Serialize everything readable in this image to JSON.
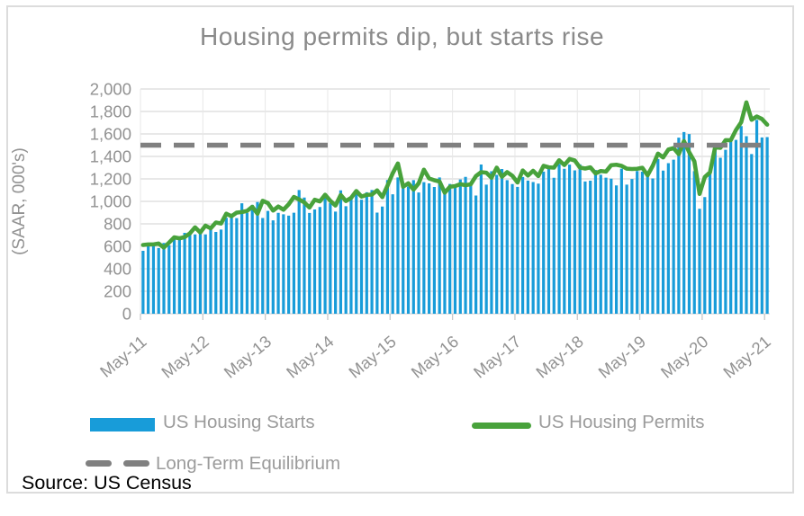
{
  "title": "Housing permits dip, but starts rise",
  "y_axis": {
    "title": "(SAAR, 000's)"
  },
  "legend": {
    "starts_label": "US Housing Starts",
    "permits_label": "US Housing Permits",
    "equilibrium_label": "Long-Term Equilibrium"
  },
  "source_note": "Source: US Census",
  "colors": {
    "starts": "#189cd9",
    "permits": "#48a23b",
    "equilibrium": "#808080",
    "grid": "#d9d9d9",
    "vgrid": "#e7e7e7",
    "axis_text": "#929292",
    "title_text": "#8a8a8a",
    "legend_text": "#9b9b9b",
    "source_text": "#000000"
  },
  "chart_data": {
    "type": "combo (bar + line)",
    "frequency": "monthly",
    "x_start": "May-2011",
    "x_end": "May-2021",
    "x_tick_labels": [
      "May-11",
      "May-12",
      "May-13",
      "May-14",
      "May-15",
      "May-16",
      "May-17",
      "May-18",
      "May-19",
      "May-20",
      "May-21"
    ],
    "ylim": [
      0,
      2000
    ],
    "y_tick_step": 200,
    "y_tick_labels": [
      "0",
      "200",
      "400",
      "600",
      "800",
      "1,000",
      "1,200",
      "1,400",
      "1,600",
      "1,800",
      "2,000"
    ],
    "grid": "horizontal + yearly vertical",
    "legend_position": "bottom",
    "series": [
      {
        "name": "US Housing Starts",
        "type": "bar",
        "values": [
          560,
          615,
          623,
          585,
          630,
          610,
          685,
          689,
          720,
          718,
          706,
          747,
          706,
          754,
          728,
          749,
          854,
          863,
          851,
          983,
          898,
          969,
          994,
          852,
          915,
          831,
          898,
          885,
          873,
          899,
          1101,
          1034,
          897,
          928,
          950,
          1063,
          984,
          909,
          1098,
          957,
          1028,
          1092,
          1015,
          1081,
          1101,
          900,
          954,
          1190,
          1063,
          1213,
          1147,
          1132,
          1189,
          1079,
          1171,
          1160,
          1128,
          1213,
          1113,
          1155,
          1128,
          1195,
          1218,
          1164,
          1052,
          1328,
          1149,
          1268,
          1236,
          1288,
          1189,
          1154,
          1129,
          1217,
          1185,
          1172,
          1158,
          1265,
          1303,
          1210,
          1334,
          1290,
          1327,
          1276,
          1329,
          1177,
          1184,
          1279,
          1237,
          1211,
          1202,
          1142,
          1291,
          1149,
          1199,
          1270,
          1264,
          1233,
          1204,
          1377,
          1274,
          1340,
          1371,
          1567,
          1617,
          1599,
          1269,
          934,
          1038,
          1265,
          1497,
          1388,
          1459,
          1530,
          1547,
          1670,
          1580,
          1421,
          1725,
          1569,
          1572
        ]
      },
      {
        "name": "US Housing Permits",
        "type": "line",
        "values": [
          612,
          617,
          617,
          625,
          589,
          633,
          680,
          671,
          682,
          715,
          769,
          723,
          784,
          760,
          812,
          803,
          890,
          868,
          900,
          905,
          915,
          952,
          890,
          1005,
          985,
          918,
          954,
          926,
          974,
          1039,
          1017,
          991,
          945,
          1014,
          1000,
          1059,
          1005,
          963,
          1057,
          1003,
          1031,
          1092,
          1043,
          1058,
          1060,
          1098,
          1038,
          1140,
          1250,
          1337,
          1130,
          1161,
          1105,
          1161,
          1282,
          1204,
          1188,
          1177,
          1077,
          1130,
          1136,
          1153,
          1144,
          1152,
          1225,
          1260,
          1255,
          1210,
          1300,
          1219,
          1260,
          1228,
          1168,
          1275,
          1230,
          1272,
          1225,
          1316,
          1303,
          1300,
          1366,
          1323,
          1377,
          1364,
          1301,
          1292,
          1303,
          1249,
          1270,
          1265,
          1322,
          1326,
          1316,
          1291,
          1288,
          1290,
          1299,
          1232,
          1317,
          1425,
          1391,
          1461,
          1474,
          1420,
          1536,
          1438,
          1356,
          1066,
          1216,
          1258,
          1483,
          1476,
          1545,
          1544,
          1635,
          1704,
          1881,
          1726,
          1755,
          1733,
          1683
        ]
      },
      {
        "name": "Long-Term Equilibrium",
        "type": "dashed-constant-line",
        "value": 1500
      }
    ]
  }
}
